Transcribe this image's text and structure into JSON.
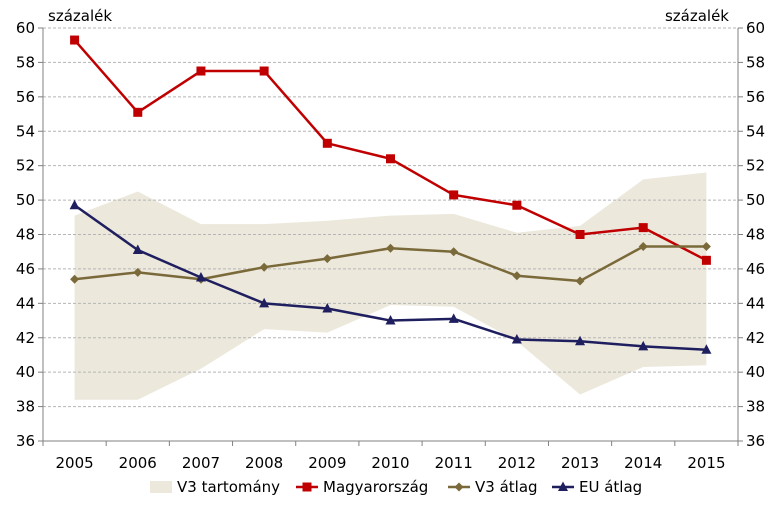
{
  "chart_data": {
    "type": "line",
    "y_unit_left": "százalék",
    "y_unit_right": "százalék",
    "categories": [
      "2005",
      "2006",
      "2007",
      "2008",
      "2009",
      "2010",
      "2011",
      "2012",
      "2013",
      "2014",
      "2015"
    ],
    "ylim": [
      36,
      60
    ],
    "yticks": [
      36,
      38,
      40,
      42,
      44,
      46,
      48,
      50,
      52,
      54,
      56,
      58,
      60
    ],
    "grid": true,
    "legend_position": "bottom",
    "band": {
      "name": "V3 tartomány",
      "color": "#ece8dc",
      "lower": [
        38.4,
        38.4,
        40.2,
        42.5,
        42.3,
        43.9,
        43.8,
        41.8,
        38.7,
        40.3,
        40.4
      ],
      "upper": [
        49.1,
        50.5,
        48.6,
        48.6,
        48.8,
        49.1,
        49.2,
        48.1,
        48.5,
        51.2,
        51.6
      ]
    },
    "series": [
      {
        "name": "Magyarország",
        "color": "#c00000",
        "marker": "square",
        "values": [
          59.3,
          55.1,
          57.5,
          57.5,
          53.3,
          52.4,
          50.3,
          49.7,
          48.0,
          48.4,
          46.5
        ]
      },
      {
        "name": "V3 átlag",
        "color": "#7a6a3a",
        "marker": "diamond",
        "values": [
          45.4,
          45.8,
          45.4,
          46.1,
          46.6,
          47.2,
          47.0,
          45.6,
          45.3,
          47.3,
          47.3
        ]
      },
      {
        "name": "EU átlag",
        "color": "#1f1f5f",
        "marker": "triangle",
        "values": [
          49.7,
          47.1,
          45.5,
          44.0,
          43.7,
          43.0,
          43.1,
          41.9,
          41.8,
          41.5,
          41.3
        ]
      }
    ]
  }
}
